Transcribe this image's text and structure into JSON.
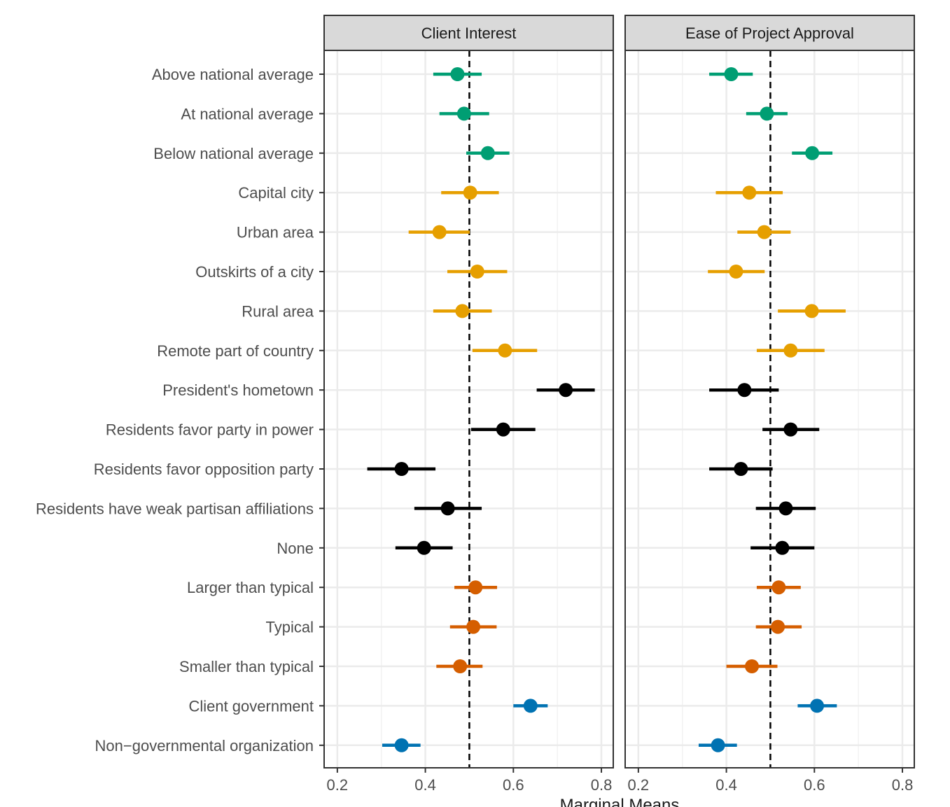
{
  "chart_data": {
    "type": "scatter",
    "subtype": "coefficient-plot-with-error-bars",
    "xlabel": "Marginal Means",
    "xlim": [
      0.17,
      0.827
    ],
    "x_ticks": [
      0.2,
      0.4,
      0.6,
      0.8
    ],
    "x_tick_labels": [
      "0.2",
      "0.4",
      "0.6",
      "0.8"
    ],
    "reference_line": 0.5,
    "grid": true,
    "categories": [
      "Above national average",
      "At national average",
      "Below national average",
      "Capital city",
      "Urban area",
      "Outskirts of a city",
      "Rural area",
      "Remote part of country",
      "President's hometown",
      "Residents favor party in power",
      "Residents favor opposition party",
      "Residents have weak partisan affiliations",
      "None",
      "Larger than typical",
      "Typical",
      "Smaller than typical",
      "Client government",
      "Non−governmental organization"
    ],
    "groups": [
      {
        "color": "#009e73",
        "rows": [
          0,
          1,
          2
        ]
      },
      {
        "color": "#e69f00",
        "rows": [
          3,
          4,
          5,
          6,
          7
        ]
      },
      {
        "color": "#000000",
        "rows": [
          8,
          9,
          10,
          11,
          12
        ]
      },
      {
        "color": "#d55e00",
        "rows": [
          13,
          14,
          15
        ]
      },
      {
        "color": "#0072b2",
        "rows": [
          16,
          17
        ]
      }
    ],
    "panels": [
      {
        "title": "Client Interest",
        "estimates": [
          0.473,
          0.488,
          0.542,
          0.502,
          0.432,
          0.518,
          0.484,
          0.581,
          0.719,
          0.577,
          0.346,
          0.451,
          0.397,
          0.514,
          0.509,
          0.479,
          0.639,
          0.346
        ],
        "lower": [
          0.418,
          0.432,
          0.493,
          0.436,
          0.362,
          0.45,
          0.418,
          0.507,
          0.653,
          0.504,
          0.268,
          0.375,
          0.332,
          0.466,
          0.456,
          0.425,
          0.6,
          0.302
        ],
        "upper": [
          0.528,
          0.545,
          0.591,
          0.567,
          0.501,
          0.586,
          0.551,
          0.654,
          0.785,
          0.65,
          0.423,
          0.528,
          0.462,
          0.563,
          0.562,
          0.53,
          0.678,
          0.389
        ]
      },
      {
        "title": "Ease of Project Approval",
        "estimates": [
          0.411,
          0.492,
          0.595,
          0.452,
          0.486,
          0.422,
          0.594,
          0.546,
          0.441,
          0.546,
          0.433,
          0.535,
          0.527,
          0.519,
          0.517,
          0.458,
          0.606,
          0.381
        ],
        "lower": [
          0.361,
          0.445,
          0.549,
          0.376,
          0.425,
          0.358,
          0.517,
          0.469,
          0.361,
          0.482,
          0.361,
          0.467,
          0.455,
          0.469,
          0.467,
          0.4,
          0.562,
          0.337
        ],
        "upper": [
          0.46,
          0.539,
          0.641,
          0.528,
          0.546,
          0.487,
          0.671,
          0.623,
          0.519,
          0.611,
          0.505,
          0.603,
          0.6,
          0.569,
          0.571,
          0.516,
          0.651,
          0.424
        ]
      }
    ]
  }
}
